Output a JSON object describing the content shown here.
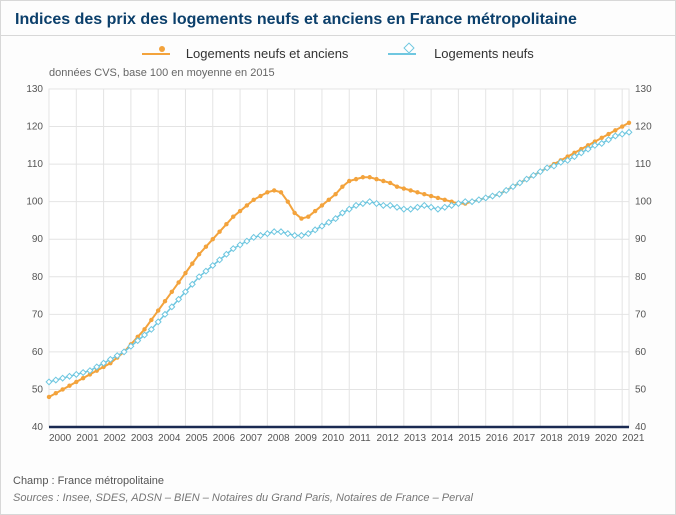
{
  "title": "Indices des prix des logements neufs et anciens en France métropolitaine",
  "subtitle": "données CVS, base 100 en moyenne en 2015",
  "footer": {
    "scope": "Champ : France métropolitaine",
    "source": "Sources : Insee, SDES, ADSN – BIEN – Notaires du Grand Paris, Notaires de France – Perval"
  },
  "chart": {
    "type": "line",
    "x_start": 2000.0,
    "x_end": 2021.25,
    "x_ticks": [
      2000,
      2001,
      2002,
      2003,
      2004,
      2005,
      2006,
      2007,
      2008,
      2009,
      2010,
      2011,
      2012,
      2013,
      2014,
      2015,
      2016,
      2017,
      2018,
      2019,
      2020,
      2021
    ],
    "ylim": [
      40,
      130
    ],
    "ytick_step": 10,
    "background_color": "#ffffff",
    "grid_color": "#e4e4e4",
    "axis_color": "#1a2a52",
    "tick_font_size": 10,
    "tick_color": "#555555"
  },
  "series": [
    {
      "label": "Logements neufs et anciens",
      "color": "#f3a33c",
      "marker": "circle",
      "line_width": 2,
      "data": [
        [
          2000.0,
          48
        ],
        [
          2000.25,
          49
        ],
        [
          2000.5,
          50
        ],
        [
          2000.75,
          51
        ],
        [
          2001.0,
          52
        ],
        [
          2001.25,
          53
        ],
        [
          2001.5,
          54
        ],
        [
          2001.75,
          55
        ],
        [
          2002.0,
          56
        ],
        [
          2002.25,
          57
        ],
        [
          2002.5,
          58.5
        ],
        [
          2002.75,
          60
        ],
        [
          2003.0,
          62
        ],
        [
          2003.25,
          64
        ],
        [
          2003.5,
          66
        ],
        [
          2003.75,
          68.5
        ],
        [
          2004.0,
          71
        ],
        [
          2004.25,
          73.5
        ],
        [
          2004.5,
          76
        ],
        [
          2004.75,
          78.5
        ],
        [
          2005.0,
          81
        ],
        [
          2005.25,
          83.5
        ],
        [
          2005.5,
          86
        ],
        [
          2005.75,
          88
        ],
        [
          2006.0,
          90
        ],
        [
          2006.25,
          92
        ],
        [
          2006.5,
          94
        ],
        [
          2006.75,
          96
        ],
        [
          2007.0,
          97.5
        ],
        [
          2007.25,
          99
        ],
        [
          2007.5,
          100.5
        ],
        [
          2007.75,
          101.5
        ],
        [
          2008.0,
          102.5
        ],
        [
          2008.25,
          103
        ],
        [
          2008.5,
          102.5
        ],
        [
          2008.75,
          100
        ],
        [
          2009.0,
          97
        ],
        [
          2009.25,
          95.5
        ],
        [
          2009.5,
          96
        ],
        [
          2009.75,
          97.5
        ],
        [
          2010.0,
          99
        ],
        [
          2010.25,
          100.5
        ],
        [
          2010.5,
          102
        ],
        [
          2010.75,
          104
        ],
        [
          2011.0,
          105.5
        ],
        [
          2011.25,
          106
        ],
        [
          2011.5,
          106.5
        ],
        [
          2011.75,
          106.5
        ],
        [
          2012.0,
          106
        ],
        [
          2012.25,
          105.5
        ],
        [
          2012.5,
          105
        ],
        [
          2012.75,
          104
        ],
        [
          2013.0,
          103.5
        ],
        [
          2013.25,
          103
        ],
        [
          2013.5,
          102.5
        ],
        [
          2013.75,
          102
        ],
        [
          2014.0,
          101.5
        ],
        [
          2014.25,
          101
        ],
        [
          2014.5,
          100.5
        ],
        [
          2014.75,
          100
        ],
        [
          2015.0,
          99.5
        ],
        [
          2015.25,
          99.5
        ],
        [
          2015.5,
          100
        ],
        [
          2015.75,
          100.5
        ],
        [
          2016.0,
          101
        ],
        [
          2016.25,
          101.5
        ],
        [
          2016.5,
          102
        ],
        [
          2016.75,
          103
        ],
        [
          2017.0,
          104
        ],
        [
          2017.25,
          105
        ],
        [
          2017.5,
          106
        ],
        [
          2017.75,
          107
        ],
        [
          2018.0,
          108
        ],
        [
          2018.25,
          109
        ],
        [
          2018.5,
          110
        ],
        [
          2018.75,
          111
        ],
        [
          2019.0,
          112
        ],
        [
          2019.25,
          113
        ],
        [
          2019.5,
          114
        ],
        [
          2019.75,
          115
        ],
        [
          2020.0,
          116
        ],
        [
          2020.25,
          117
        ],
        [
          2020.5,
          118
        ],
        [
          2020.75,
          119
        ],
        [
          2021.0,
          120
        ],
        [
          2021.25,
          121
        ]
      ]
    },
    {
      "label": "Logements neufs",
      "color": "#6fc7e0",
      "marker": "diamond",
      "line_width": 1.5,
      "data": [
        [
          2000.0,
          52
        ],
        [
          2000.25,
          52.5
        ],
        [
          2000.5,
          53
        ],
        [
          2000.75,
          53.5
        ],
        [
          2001.0,
          54
        ],
        [
          2001.25,
          54.5
        ],
        [
          2001.5,
          55
        ],
        [
          2001.75,
          56
        ],
        [
          2002.0,
          57
        ],
        [
          2002.25,
          58
        ],
        [
          2002.5,
          59
        ],
        [
          2002.75,
          60
        ],
        [
          2003.0,
          61.5
        ],
        [
          2003.25,
          63
        ],
        [
          2003.5,
          64.5
        ],
        [
          2003.75,
          66
        ],
        [
          2004.0,
          68
        ],
        [
          2004.25,
          70
        ],
        [
          2004.5,
          72
        ],
        [
          2004.75,
          74
        ],
        [
          2005.0,
          76
        ],
        [
          2005.25,
          78
        ],
        [
          2005.5,
          80
        ],
        [
          2005.75,
          81.5
        ],
        [
          2006.0,
          83
        ],
        [
          2006.25,
          84.5
        ],
        [
          2006.5,
          86
        ],
        [
          2006.75,
          87.5
        ],
        [
          2007.0,
          88.5
        ],
        [
          2007.25,
          89.5
        ],
        [
          2007.5,
          90.5
        ],
        [
          2007.75,
          91
        ],
        [
          2008.0,
          91.5
        ],
        [
          2008.25,
          92
        ],
        [
          2008.5,
          92
        ],
        [
          2008.75,
          91.5
        ],
        [
          2009.0,
          91
        ],
        [
          2009.25,
          91
        ],
        [
          2009.5,
          91.5
        ],
        [
          2009.75,
          92.5
        ],
        [
          2010.0,
          93.5
        ],
        [
          2010.25,
          94.5
        ],
        [
          2010.5,
          95.5
        ],
        [
          2010.75,
          97
        ],
        [
          2011.0,
          98
        ],
        [
          2011.25,
          99
        ],
        [
          2011.5,
          99.5
        ],
        [
          2011.75,
          100
        ],
        [
          2012.0,
          99.5
        ],
        [
          2012.25,
          99
        ],
        [
          2012.5,
          99
        ],
        [
          2012.75,
          98.5
        ],
        [
          2013.0,
          98
        ],
        [
          2013.25,
          98
        ],
        [
          2013.5,
          98.5
        ],
        [
          2013.75,
          99
        ],
        [
          2014.0,
          98.5
        ],
        [
          2014.25,
          98
        ],
        [
          2014.5,
          98.5
        ],
        [
          2014.75,
          99
        ],
        [
          2015.0,
          99.5
        ],
        [
          2015.25,
          100
        ],
        [
          2015.5,
          100
        ],
        [
          2015.75,
          100.5
        ],
        [
          2016.0,
          101
        ],
        [
          2016.25,
          101.5
        ],
        [
          2016.5,
          102
        ],
        [
          2016.75,
          103
        ],
        [
          2017.0,
          104
        ],
        [
          2017.25,
          105
        ],
        [
          2017.5,
          106
        ],
        [
          2017.75,
          107
        ],
        [
          2018.0,
          108
        ],
        [
          2018.25,
          109
        ],
        [
          2018.5,
          109.5
        ],
        [
          2018.75,
          110.5
        ],
        [
          2019.0,
          111
        ],
        [
          2019.25,
          112
        ],
        [
          2019.5,
          113
        ],
        [
          2019.75,
          114
        ],
        [
          2020.0,
          115
        ],
        [
          2020.25,
          115.5
        ],
        [
          2020.5,
          116.5
        ],
        [
          2020.75,
          117.5
        ],
        [
          2021.0,
          118
        ],
        [
          2021.25,
          118.5
        ]
      ]
    }
  ]
}
